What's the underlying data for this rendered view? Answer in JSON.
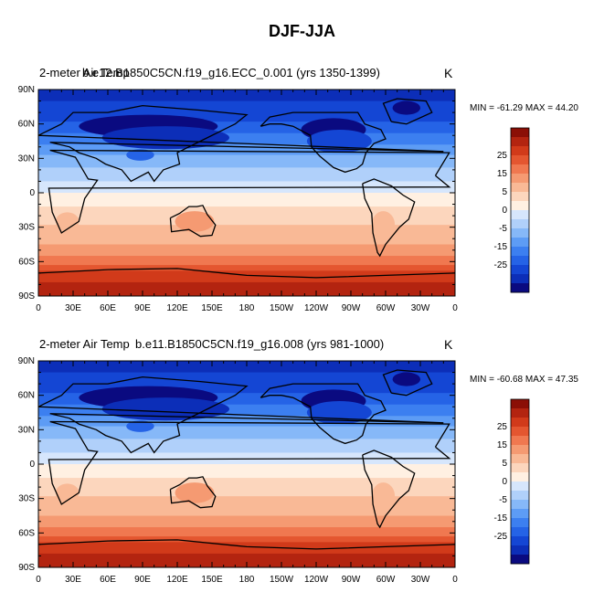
{
  "title": "DJF-JJA",
  "colorbar": {
    "colors": [
      "#0a0a80",
      "#0c2eb8",
      "#1446d4",
      "#2563e6",
      "#3c7ff0",
      "#5d9cf5",
      "#86b8f8",
      "#b0d0fa",
      "#d6e6fc",
      "#fff0e2",
      "#fcd6bd",
      "#f9b996",
      "#f59a72",
      "#f07850",
      "#e45630",
      "#d13a1a",
      "#b32410",
      "#8b0f06"
    ],
    "labels": [
      "25",
      "15",
      "5",
      "0",
      "-5",
      "-15",
      "-25"
    ],
    "label_boundary_index": [
      15,
      13,
      11,
      9,
      7,
      5,
      3
    ]
  },
  "map": {
    "lat_ticks": [
      "90N",
      "60N",
      "30N",
      "0",
      "30S",
      "60S",
      "90S"
    ],
    "lon_ticks": [
      "0",
      "30E",
      "60E",
      "90E",
      "120E",
      "150E",
      "180",
      "150W",
      "120W",
      "90W",
      "60W",
      "30W",
      "0"
    ]
  },
  "panels": [
    {
      "id": "top",
      "left_title": "2-meter Air Temp",
      "center_title": "b.e12.B1850C5CN.f19_g16.ECC_0.001 (yrs 1350-1399)",
      "units": "K",
      "minmax": "MIN = -61.29 MAX =  44.20"
    },
    {
      "id": "bottom",
      "left_title": "2-meter Air Temp",
      "center_title": "b.e11.B1850C5CN.f19_g16.008 (yrs 981-1000)",
      "units": "K",
      "minmax": "MIN = -60.68 MAX =  47.35"
    }
  ]
}
